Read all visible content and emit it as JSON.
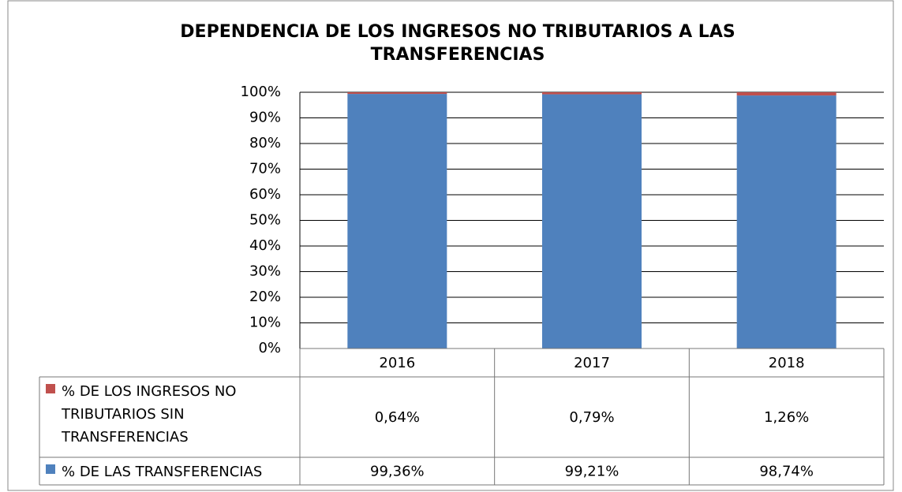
{
  "chart_data": {
    "type": "stacked_bar",
    "title": "DEPENDENCIA DE LOS INGRESOS NO TRIBUTARIOS A LAS TRANSFERENCIAS",
    "categories": [
      "2016",
      "2017",
      "2018"
    ],
    "series": [
      {
        "name": "% DE LAS TRANSFERENCIAS",
        "color": "#4f81bd",
        "values": [
          99.36,
          99.21,
          98.74
        ],
        "value_labels": [
          "99,36%",
          "99,21%",
          "98,74%"
        ]
      },
      {
        "name": "% DE LOS INGRESOS NO TRIBUTARIOS SIN TRANSFERENCIAS",
        "color": "#c0504d",
        "values": [
          0.64,
          0.79,
          1.26
        ],
        "value_labels": [
          "0,64%",
          "0,79%",
          "1,26%"
        ]
      }
    ],
    "ylim": [
      0,
      100
    ],
    "yticks": [
      {
        "value": 0,
        "label": "0%"
      },
      {
        "value": 10,
        "label": "10%"
      },
      {
        "value": 20,
        "label": "20%"
      },
      {
        "value": 30,
        "label": "30%"
      },
      {
        "value": 40,
        "label": "40%"
      },
      {
        "value": 50,
        "label": "50%"
      },
      {
        "value": 60,
        "label": "60%"
      },
      {
        "value": 70,
        "label": "70%"
      },
      {
        "value": 80,
        "label": "80%"
      },
      {
        "value": 90,
        "label": "90%"
      },
      {
        "value": 100,
        "label": "100%"
      }
    ],
    "grid": true
  }
}
